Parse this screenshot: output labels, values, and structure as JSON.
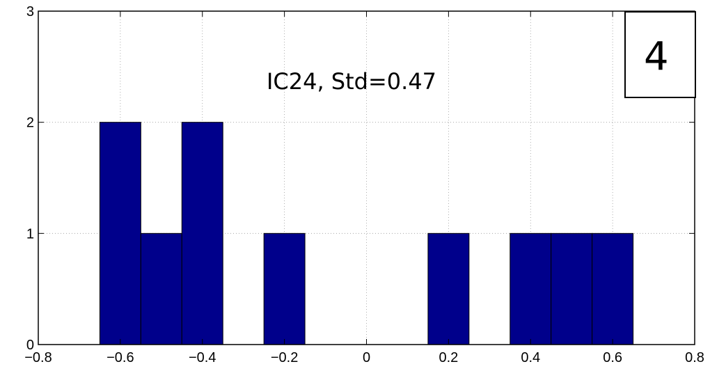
{
  "chart_data": {
    "type": "bar",
    "annotation": "IC24, Std=0.47",
    "panel_label": "4",
    "xlim": [
      -0.8,
      0.8
    ],
    "ylim": [
      0,
      3
    ],
    "x_ticks": [
      "−0.8",
      "−0.6",
      "−0.4",
      "−0.2",
      "0",
      "0.2",
      "0.4",
      "0.6",
      "0.8"
    ],
    "y_ticks": [
      "0",
      "1",
      "2",
      "3"
    ],
    "grid": true,
    "bar_color": "#00008B",
    "bin_width": 0.1,
    "bins": [
      {
        "center": -0.6,
        "count": 2
      },
      {
        "center": -0.5,
        "count": 1
      },
      {
        "center": -0.4,
        "count": 2
      },
      {
        "center": -0.2,
        "count": 1
      },
      {
        "center": 0.2,
        "count": 1
      },
      {
        "center": 0.4,
        "count": 1
      },
      {
        "center": 0.5,
        "count": 1
      },
      {
        "center": 0.6,
        "count": 1
      }
    ]
  }
}
